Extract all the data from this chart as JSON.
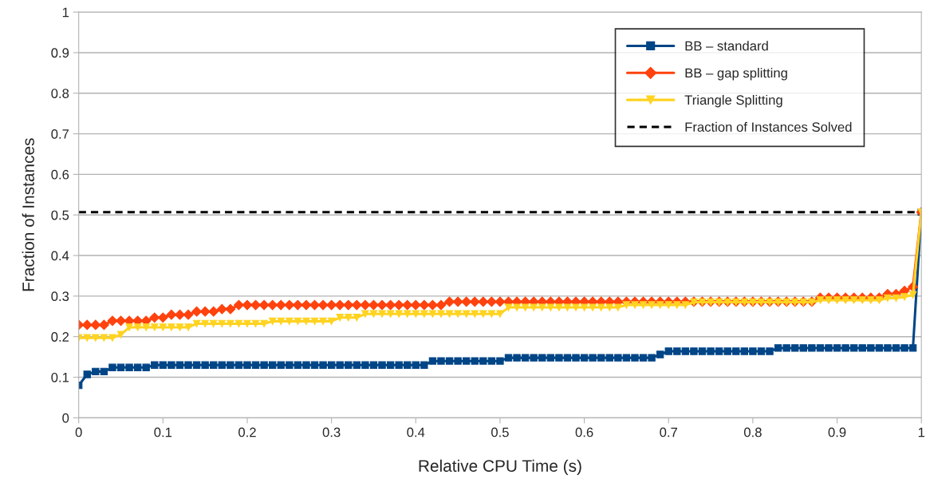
{
  "chart_data": {
    "type": "line",
    "xlabel": "Relative CPU Time (s)",
    "ylabel": "Fraction of Instances",
    "x": [
      0,
      0.01,
      0.02,
      0.03,
      0.04,
      0.05,
      0.06,
      0.07,
      0.08,
      0.09,
      0.1,
      0.11,
      0.12,
      0.13,
      0.14,
      0.15,
      0.16,
      0.17,
      0.18,
      0.19,
      0.2,
      0.21,
      0.22,
      0.23,
      0.24,
      0.25,
      0.26,
      0.27,
      0.28,
      0.29,
      0.3,
      0.31,
      0.32,
      0.33,
      0.34,
      0.35,
      0.36,
      0.37,
      0.38,
      0.39,
      0.4,
      0.41,
      0.42,
      0.43,
      0.44,
      0.45,
      0.46,
      0.47,
      0.48,
      0.49,
      0.5,
      0.51,
      0.52,
      0.53,
      0.54,
      0.55,
      0.56,
      0.57,
      0.58,
      0.59,
      0.6,
      0.61,
      0.62,
      0.63,
      0.64,
      0.65,
      0.66,
      0.67,
      0.68,
      0.69,
      0.7,
      0.71,
      0.72,
      0.73,
      0.74,
      0.75,
      0.76,
      0.77,
      0.78,
      0.79,
      0.8,
      0.81,
      0.82,
      0.83,
      0.84,
      0.85,
      0.86,
      0.87,
      0.88,
      0.89,
      0.9,
      0.91,
      0.92,
      0.93,
      0.94,
      0.95,
      0.96,
      0.97,
      0.98,
      0.99,
      1
    ],
    "series": [
      {
        "name": "BB – standard",
        "color": "#004586",
        "marker": "square",
        "values": [
          0.08,
          0.107,
          0.114,
          0.114,
          0.124,
          0.124,
          0.124,
          0.124,
          0.124,
          0.13,
          0.13,
          0.13,
          0.13,
          0.13,
          0.13,
          0.13,
          0.13,
          0.13,
          0.13,
          0.13,
          0.13,
          0.13,
          0.13,
          0.13,
          0.13,
          0.13,
          0.13,
          0.13,
          0.13,
          0.13,
          0.13,
          0.13,
          0.13,
          0.13,
          0.13,
          0.13,
          0.13,
          0.13,
          0.13,
          0.13,
          0.13,
          0.13,
          0.14,
          0.14,
          0.14,
          0.14,
          0.14,
          0.14,
          0.14,
          0.14,
          0.14,
          0.148,
          0.148,
          0.148,
          0.148,
          0.148,
          0.148,
          0.148,
          0.148,
          0.148,
          0.148,
          0.148,
          0.148,
          0.148,
          0.148,
          0.148,
          0.148,
          0.148,
          0.148,
          0.156,
          0.164,
          0.164,
          0.164,
          0.164,
          0.164,
          0.164,
          0.164,
          0.164,
          0.164,
          0.164,
          0.164,
          0.164,
          0.164,
          0.172,
          0.172,
          0.172,
          0.172,
          0.172,
          0.172,
          0.172,
          0.172,
          0.172,
          0.172,
          0.172,
          0.172,
          0.172,
          0.172,
          0.172,
          0.172,
          0.172,
          0.507
        ]
      },
      {
        "name": "BB – gap splitting",
        "color": "#ff420e",
        "marker": "diamond",
        "values": [
          0.229,
          0.229,
          0.229,
          0.229,
          0.239,
          0.239,
          0.239,
          0.239,
          0.239,
          0.247,
          0.247,
          0.254,
          0.254,
          0.254,
          0.262,
          0.262,
          0.262,
          0.268,
          0.268,
          0.278,
          0.278,
          0.278,
          0.278,
          0.278,
          0.278,
          0.278,
          0.278,
          0.278,
          0.278,
          0.278,
          0.278,
          0.278,
          0.278,
          0.278,
          0.278,
          0.278,
          0.278,
          0.278,
          0.278,
          0.278,
          0.278,
          0.278,
          0.278,
          0.278,
          0.286,
          0.286,
          0.286,
          0.286,
          0.286,
          0.286,
          0.286,
          0.286,
          0.286,
          0.286,
          0.286,
          0.286,
          0.286,
          0.286,
          0.286,
          0.286,
          0.286,
          0.286,
          0.286,
          0.286,
          0.286,
          0.286,
          0.286,
          0.286,
          0.286,
          0.286,
          0.286,
          0.286,
          0.286,
          0.286,
          0.286,
          0.286,
          0.286,
          0.286,
          0.286,
          0.286,
          0.286,
          0.286,
          0.286,
          0.286,
          0.286,
          0.286,
          0.286,
          0.286,
          0.296,
          0.296,
          0.296,
          0.296,
          0.296,
          0.296,
          0.296,
          0.296,
          0.305,
          0.305,
          0.313,
          0.323,
          0.507
        ]
      },
      {
        "name": "Triangle Splitting",
        "color": "#ffd320",
        "marker": "triangle",
        "values": [
          0.197,
          0.197,
          0.197,
          0.197,
          0.197,
          0.205,
          0.223,
          0.223,
          0.223,
          0.223,
          0.223,
          0.223,
          0.223,
          0.223,
          0.232,
          0.232,
          0.232,
          0.232,
          0.232,
          0.232,
          0.232,
          0.232,
          0.232,
          0.238,
          0.238,
          0.238,
          0.238,
          0.238,
          0.238,
          0.238,
          0.238,
          0.247,
          0.247,
          0.247,
          0.256,
          0.256,
          0.256,
          0.256,
          0.256,
          0.256,
          0.256,
          0.256,
          0.256,
          0.256,
          0.256,
          0.256,
          0.256,
          0.256,
          0.256,
          0.256,
          0.256,
          0.272,
          0.272,
          0.272,
          0.272,
          0.272,
          0.272,
          0.272,
          0.272,
          0.272,
          0.272,
          0.272,
          0.272,
          0.272,
          0.272,
          0.278,
          0.278,
          0.278,
          0.278,
          0.278,
          0.278,
          0.278,
          0.278,
          0.285,
          0.285,
          0.285,
          0.285,
          0.285,
          0.285,
          0.285,
          0.285,
          0.285,
          0.285,
          0.285,
          0.285,
          0.285,
          0.285,
          0.285,
          0.29,
          0.29,
          0.29,
          0.29,
          0.29,
          0.29,
          0.29,
          0.29,
          0.295,
          0.295,
          0.298,
          0.303,
          0.507
        ]
      }
    ],
    "ref_lines": [
      {
        "axis": "y",
        "value": 0.507,
        "label": "Fraction of Instances Solved",
        "color": "#000000",
        "line_style": "dashed"
      }
    ],
    "xlim": [
      0,
      1
    ],
    "ylim": [
      0,
      1
    ],
    "xticks": [
      0,
      0.1,
      0.2,
      0.3,
      0.4,
      0.5,
      0.6,
      0.7,
      0.8,
      0.9,
      1
    ],
    "yticks": [
      0,
      0.1,
      0.2,
      0.3,
      0.4,
      0.5,
      0.6,
      0.7,
      0.8,
      0.9,
      1
    ],
    "grid": "y",
    "legend": "top right"
  }
}
